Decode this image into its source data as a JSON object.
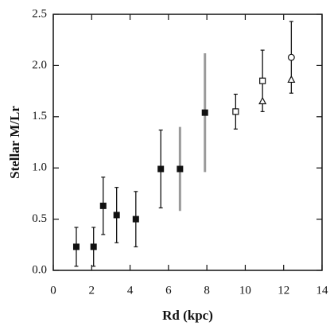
{
  "chart_data": {
    "type": "scatter",
    "x_label": "Rd (kpc)",
    "y_label": "Stellar M/Lr",
    "xlim": [
      0,
      14
    ],
    "ylim": [
      0,
      2.5
    ],
    "xticks": [
      0,
      2,
      4,
      6,
      8,
      10,
      12,
      14
    ],
    "yticks": [
      {
        "value": 0,
        "label": "0.0"
      },
      {
        "value": 0.5,
        "label": "0.5"
      },
      {
        "value": 1,
        "label": "1.0"
      },
      {
        "value": 1.5,
        "label": "1.5"
      },
      {
        "value": 2,
        "label": "2.0"
      },
      {
        "value": 2.5,
        "label": "2.5"
      }
    ],
    "series": [
      {
        "marker": "square",
        "color": "#111111",
        "error_color": "#111111",
        "x": [
          1.2,
          2.1,
          2.6,
          3.3,
          4.3,
          5.6
        ],
        "values": [
          0.23,
          0.23,
          0.63,
          0.54,
          0.5,
          0.99
        ],
        "errors": [
          0.19,
          0.19,
          0.28,
          0.27,
          0.27,
          0.38
        ]
      },
      {
        "marker": "square",
        "color": "#111111",
        "error_color": "#9a9a9a",
        "x": [
          6.6,
          7.9
        ],
        "values": [
          0.99,
          1.54
        ],
        "errors": [
          0.41,
          0.58
        ]
      },
      {
        "marker": "open-square",
        "color": "#111111",
        "error_color": "#111111",
        "x": [
          9.5,
          10.9
        ],
        "values": [
          1.55,
          1.85
        ],
        "errors": [
          0.17,
          0.3
        ]
      },
      {
        "marker": "open-circle",
        "color": "#111111",
        "error_color": "#111111",
        "x": [
          12.4
        ],
        "values": [
          2.08
        ],
        "errors": [
          0.35
        ]
      },
      {
        "marker": "open-triangle",
        "color": "#111111",
        "x": [
          10.9,
          12.4
        ],
        "values": [
          1.65,
          1.86
        ]
      }
    ]
  }
}
